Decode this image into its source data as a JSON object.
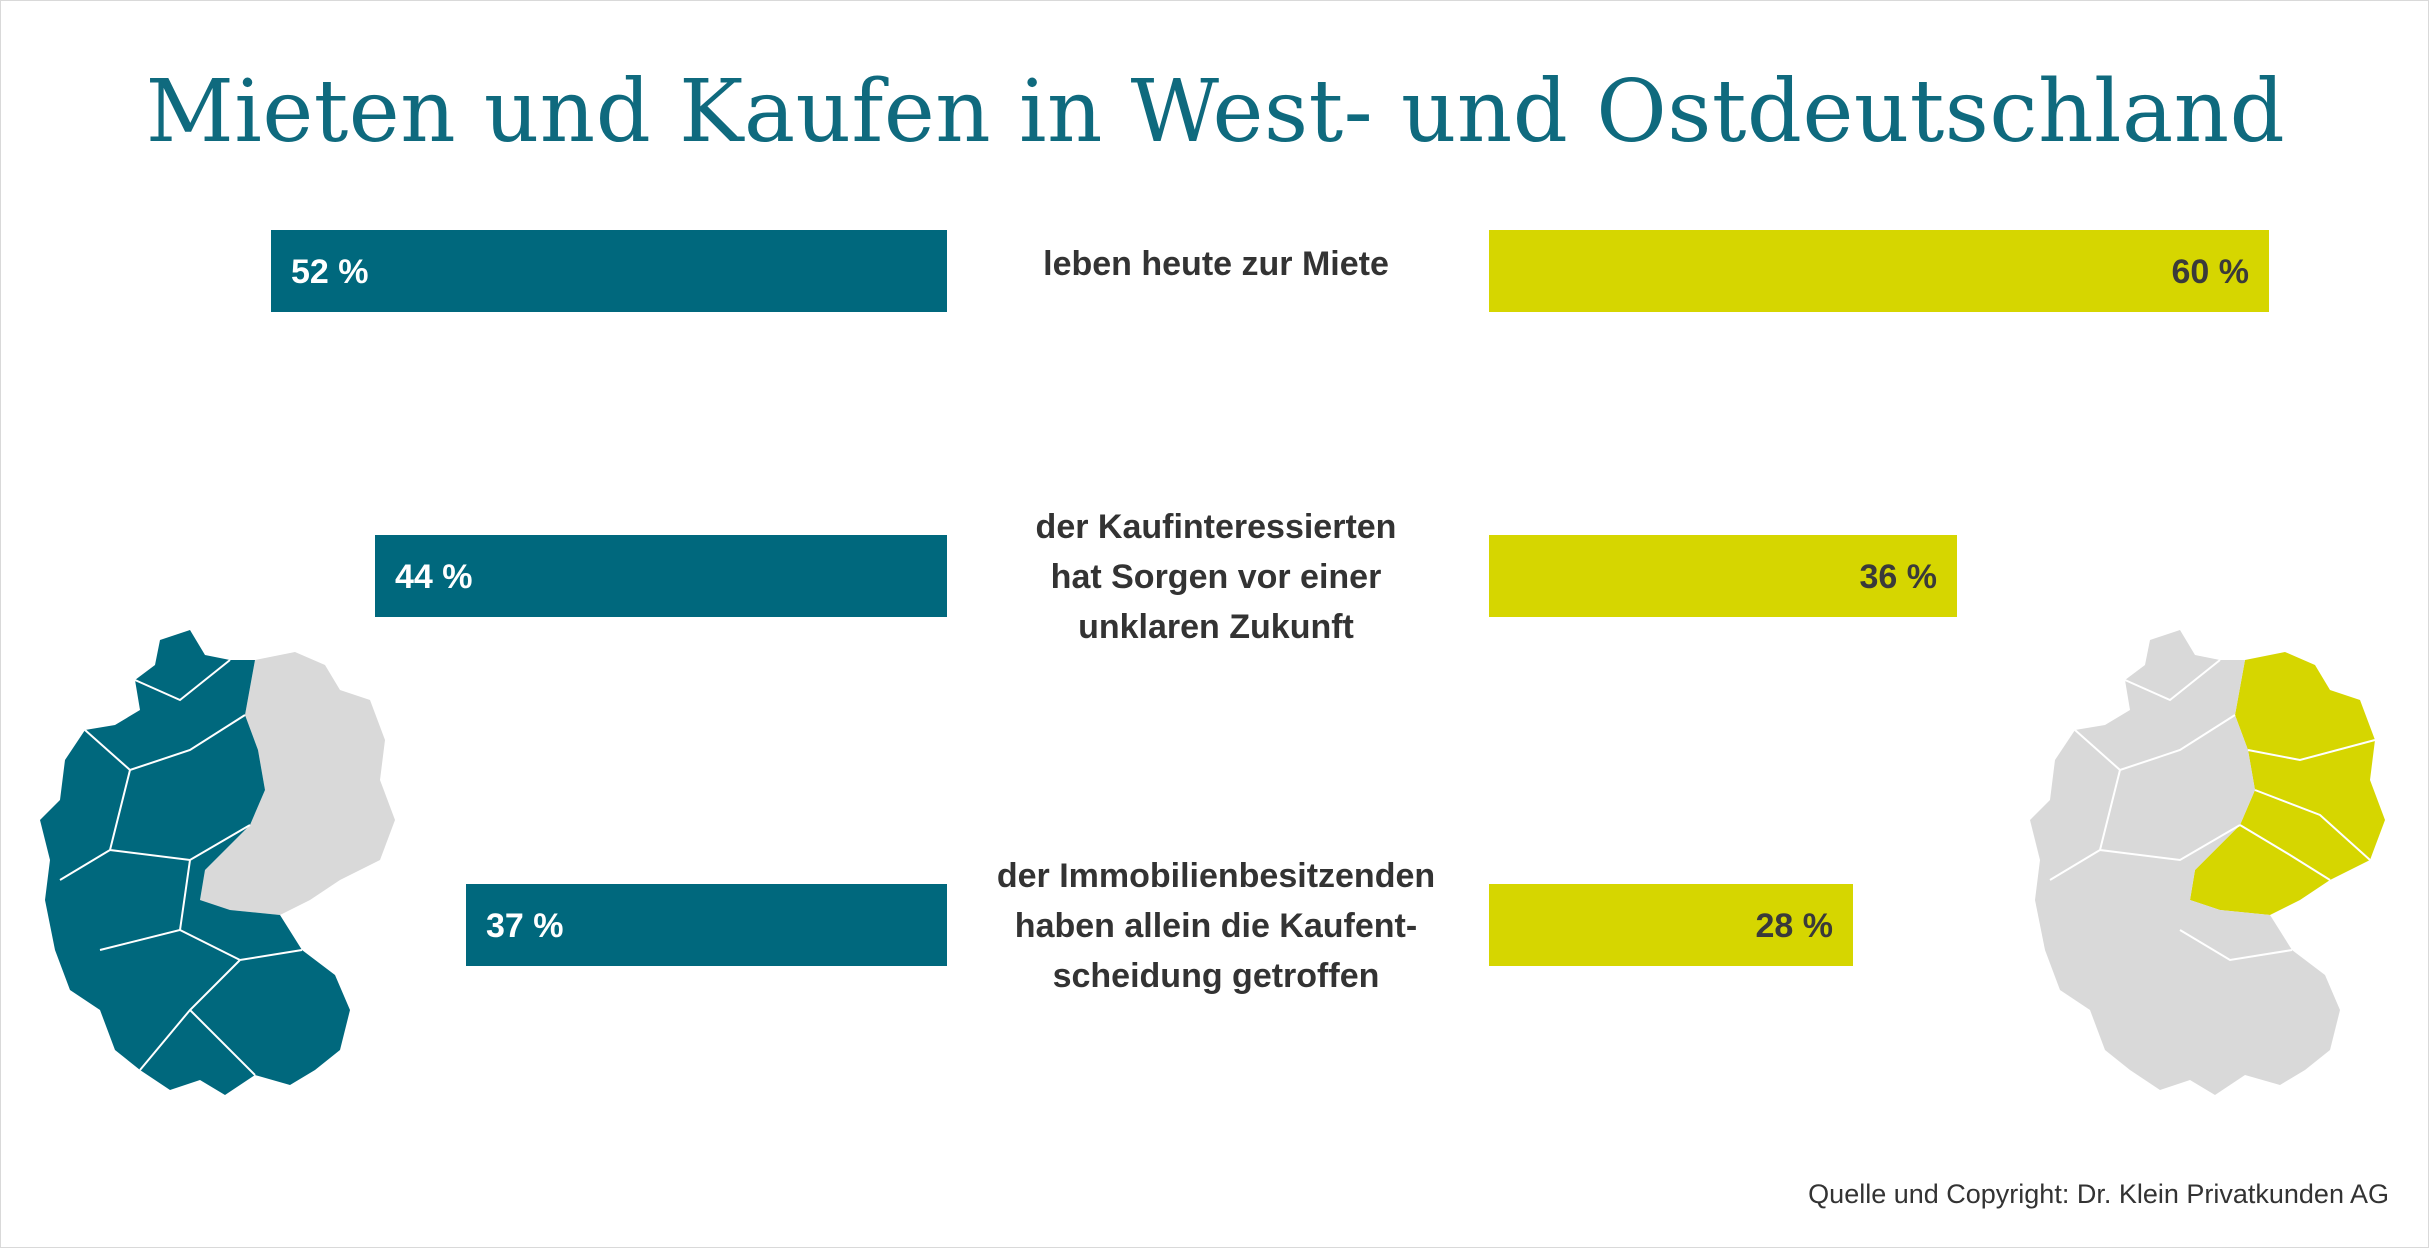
{
  "chart_data": {
    "type": "bar",
    "title": "Mieten und Kaufen in West- und Ostdeutschland",
    "categories": [
      [
        "leben heute zur Miete"
      ],
      [
        "der Kaufinteressierten",
        "hat Sorgen vor einer",
        "unklaren Zukunft"
      ],
      [
        "der Immobilienbesitzenden",
        "haben allein die Kaufent-",
        "scheidung getroffen"
      ]
    ],
    "series": [
      {
        "values": [
          52,
          44,
          37
        ],
        "labels": [
          "52 %",
          "44 %",
          "37 %"
        ],
        "color": "#00687d"
      },
      {
        "values": [
          60,
          36,
          28
        ],
        "labels": [
          "60 %",
          "36 %",
          "28 %"
        ],
        "color": "#d6d600"
      }
    ],
    "unit": "%",
    "xlim": [
      0,
      60
    ]
  },
  "source": "Quelle und Copyright: Dr. Klein Privatkunden AG",
  "maps": {
    "west_color": "#00687d",
    "east_color": "#d6d600",
    "inactive_color": "#d9d9d9"
  }
}
